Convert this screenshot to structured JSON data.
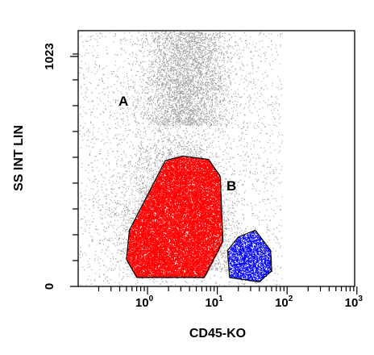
{
  "chart_data": {
    "type": "scatter",
    "xlabel": "CD45-KO",
    "ylabel": "SS INT LIN",
    "x_scale": "log",
    "xlim": [
      0.1,
      1000
    ],
    "ylim": [
      0,
      1023
    ],
    "x_ticks": [
      {
        "value": 1,
        "base": "10",
        "exp": "0"
      },
      {
        "value": 10,
        "base": "10",
        "exp": "1"
      },
      {
        "value": 100,
        "base": "10",
        "exp": "2"
      },
      {
        "value": 1000,
        "base": "10",
        "exp": "3"
      }
    ],
    "y_ticks": [
      {
        "value": 0,
        "label": "0"
      },
      {
        "value": 1023,
        "label": "1023"
      }
    ],
    "gates": [
      {
        "label": "A",
        "color": "#ff0000",
        "polygon": [
          [
            0.5,
            120
          ],
          [
            0.7,
            40
          ],
          [
            6.5,
            40
          ],
          [
            12,
            200
          ],
          [
            11,
            490
          ],
          [
            7.5,
            565
          ],
          [
            3.2,
            580
          ],
          [
            1.8,
            560
          ],
          [
            0.55,
            250
          ]
        ]
      },
      {
        "label": "B",
        "color": "#0000ff",
        "polygon": [
          [
            15,
            40
          ],
          [
            40,
            20
          ],
          [
            60,
            70
          ],
          [
            58,
            160
          ],
          [
            35,
            250
          ],
          [
            20,
            220
          ],
          [
            14,
            160
          ]
        ]
      }
    ],
    "populations": [
      {
        "name": "background",
        "color": "#a0a0a0",
        "count": 14000
      },
      {
        "name": "A",
        "color": "#ff0000",
        "count": 26000
      },
      {
        "name": "B",
        "color": "#0000ff",
        "count": 2600
      }
    ]
  }
}
